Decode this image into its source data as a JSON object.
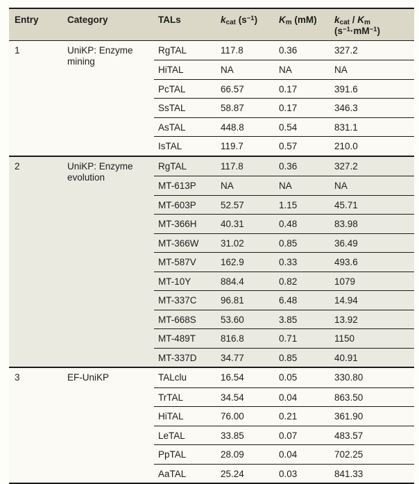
{
  "chart_data": {
    "type": "table",
    "columns": [
      "Entry",
      "Category",
      "TALs",
      "kcat (s−1)",
      "Km (mM)",
      "kcat / Km (s−1·mM−1)"
    ],
    "sections": [
      {
        "entry": "1",
        "category": "UniKP: Enzyme mining",
        "shaded": false,
        "rows": [
          {
            "tal": "RgTAL",
            "kcat": "117.8",
            "km": "0.36",
            "ratio": "327.2"
          },
          {
            "tal": "HiTAL",
            "kcat": "NA",
            "km": "NA",
            "ratio": "NA"
          },
          {
            "tal": "PcTAL",
            "kcat": "66.57",
            "km": "0.17",
            "ratio": "391.6"
          },
          {
            "tal": "SsTAL",
            "kcat": "58.87",
            "km": "0.17",
            "ratio": "346.3"
          },
          {
            "tal": "AsTAL",
            "kcat": "448.8",
            "km": "0.54",
            "ratio": "831.1"
          },
          {
            "tal": "IsTAL",
            "kcat": "119.7",
            "km": "0.57",
            "ratio": "210.0"
          }
        ]
      },
      {
        "entry": "2",
        "category": "UniKP: Enzyme evolution",
        "shaded": true,
        "rows": [
          {
            "tal": "RgTAL",
            "kcat": "117.8",
            "km": "0.36",
            "ratio": "327.2"
          },
          {
            "tal": "MT-613P",
            "kcat": "NA",
            "km": "NA",
            "ratio": "NA"
          },
          {
            "tal": "MT-603P",
            "kcat": "52.57",
            "km": "1.15",
            "ratio": "45.71"
          },
          {
            "tal": "MT-366H",
            "kcat": "40.31",
            "km": "0.48",
            "ratio": "83.98"
          },
          {
            "tal": "MT-366W",
            "kcat": "31.02",
            "km": "0.85",
            "ratio": "36.49"
          },
          {
            "tal": "MT-587V",
            "kcat": "162.9",
            "km": "0.33",
            "ratio": "493.6"
          },
          {
            "tal": "MT-10Y",
            "kcat": "884.4",
            "km": "0.82",
            "ratio": "1079"
          },
          {
            "tal": "MT-337C",
            "kcat": "96.81",
            "km": "6.48",
            "ratio": "14.94"
          },
          {
            "tal": "MT-668S",
            "kcat": "53.60",
            "km": "3.85",
            "ratio": "13.92"
          },
          {
            "tal": "MT-489T",
            "kcat": "816.8",
            "km": "0.71",
            "ratio": "1150"
          },
          {
            "tal": "MT-337D",
            "kcat": "34.77",
            "km": "0.85",
            "ratio": "40.91"
          }
        ]
      },
      {
        "entry": "3",
        "category": "EF-UniKP",
        "shaded": false,
        "rows": [
          {
            "tal": "TALclu",
            "kcat": "16.54",
            "km": "0.05",
            "ratio": "330.80"
          },
          {
            "tal": "TrTAL",
            "kcat": "34.54",
            "km": "0.04",
            "ratio": "863.50"
          },
          {
            "tal": "HiTAL",
            "kcat": "76.00",
            "km": "0.21",
            "ratio": "361.90"
          },
          {
            "tal": "LeTAL",
            "kcat": "33.85",
            "km": "0.07",
            "ratio": "483.57"
          },
          {
            "tal": "PpTAL",
            "kcat": "28.09",
            "km": "0.04",
            "ratio": "702.25"
          },
          {
            "tal": "AaTAL",
            "kcat": "25.24",
            "km": "0.03",
            "ratio": "841.33"
          }
        ]
      }
    ]
  },
  "header": {
    "entry": "Entry",
    "category": "Category",
    "tals": "TALs",
    "kcat": {
      "var": "k",
      "sub": "cat",
      "unit_open": " (s",
      "sup": "−1",
      "unit_close": ")"
    },
    "km": {
      "var": "K",
      "sub": "m",
      "unit": " (mM)"
    },
    "ratio": {
      "var1": "k",
      "sub1": "cat",
      "slash": " / ",
      "var2": "K",
      "sub2": "m",
      "unit_open": "(s",
      "sup1": "−1",
      "dot": "·",
      "unit_mid": "mM",
      "sup2": "−1",
      "unit_close": ")"
    }
  },
  "colors": {
    "header_bg": "#dbd8c7",
    "section_light_bg": "#fbfaf4",
    "section_shaded_bg": "#eaeae1",
    "rule": "#1a1a1a",
    "text": "#1c1c1c"
  }
}
